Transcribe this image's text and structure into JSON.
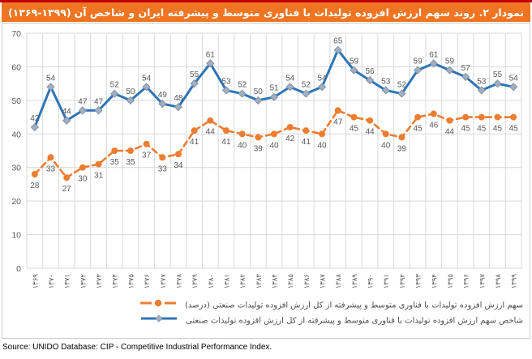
{
  "title": {
    "text": "نمودار ۲. روند سهم ارزش افزوده تولیدات با فناوری متوسط و پیشرفته ایران و شاخص آن",
    "years": "(۱۳۶۹-۱۳۹۹)"
  },
  "legend": {
    "share_label": "سهم ارزش افزوده تولیدات با فناوری متوسط و پیشرفته از کل ارزش افزوده تولیدات صنعتی (درصد)",
    "index_label": "شاخص سهم ارزش افزوده تولیدات با فناوری متوسط و پیشرفته از کل ارزش افزوده تولیدات صنعتی"
  },
  "source_line": "Source: UNIDO Database: CIP - Competitive Industrial Performance Index.",
  "colors": {
    "top_strip_red": "#C00000",
    "title_bar_orange": "#EF7522",
    "series_orange": "#ED7D31",
    "series_blue": "#2E75B6",
    "blue_marker_fill": "#A3AFC0",
    "blue_marker_stroke": "#8193A9",
    "grid_gray": "#D9D9D9",
    "label_gray": "#595959"
  },
  "chart_data": {
    "type": "line",
    "title": "نمودار ۲. روند سهم ارزش افزوده تولیدات با فناوری متوسط و پیشرفته ایران و شاخص آن (۱۳۶۹-۱۳۹۹)",
    "categories": [
      "۱۳۶۹",
      "۱۳۷۰",
      "۱۳۷۱",
      "۱۳۷۲",
      "۱۳۷۳",
      "۱۳۷۴",
      "۱۳۷۵",
      "۱۳۷۶",
      "۱۳۷۷",
      "۱۳۷۸",
      "۱۳۷۹",
      "۱۳۸۰",
      "۱۳۸۱",
      "۱۳۸۲",
      "۱۳۸۳",
      "۱۳۸۴",
      "۱۳۸۵",
      "۱۳۸۶",
      "۱۳۸۷",
      "۱۳۸۸",
      "۱۳۸۹",
      "۱۳۹۰",
      "۱۳۹۱",
      "۱۳۹۲",
      "۱۳۹۳",
      "۱۳۹۴",
      "۱۳۹۵",
      "۱۳۹۶",
      "۱۳۹۷",
      "۱۳۹۸",
      "۱۳۹۹"
    ],
    "series": [
      {
        "name": "سهم ارزش افزوده تولیدات با فناوری متوسط و پیشرفته از کل ارزش افزوده تولیدات صنعتی (درصد)",
        "style": "dashed",
        "marker": "circle",
        "color": "#ED7D31",
        "label_position": "below",
        "values": [
          28,
          33,
          27,
          30,
          31,
          35,
          35,
          37,
          33,
          34,
          41,
          44,
          41,
          40,
          39,
          40,
          42,
          41,
          40,
          47,
          45,
          44,
          40,
          39,
          45,
          46,
          44,
          45,
          45,
          45,
          45
        ]
      },
      {
        "name": "شاخص سهم ارزش افزوده تولیدات با فناوری متوسط و پیشرفته از کل ارزش افزوده تولیدات صنعتی",
        "style": "solid",
        "marker": "diamond",
        "color": "#2E75B6",
        "label_position": "above",
        "values": [
          42,
          54,
          44,
          47,
          47,
          52,
          50,
          54,
          49,
          48,
          55,
          61,
          53,
          52,
          50,
          51,
          54,
          52,
          54,
          65,
          59,
          56,
          53,
          52,
          59,
          61,
          59,
          57,
          53,
          55,
          54
        ]
      }
    ],
    "ylim": [
      0,
      70
    ],
    "yticks": [
      0,
      10,
      20,
      30,
      40,
      50,
      60,
      70
    ],
    "grid": "both",
    "legend_position": "bottom",
    "data_labels": true
  }
}
